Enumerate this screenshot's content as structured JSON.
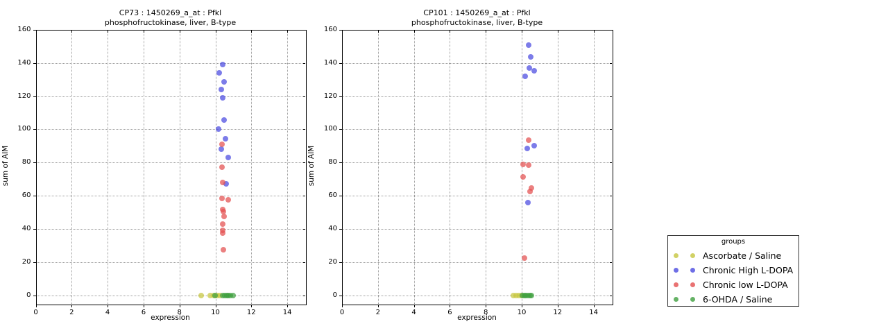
{
  "figure": {
    "background": "#ffffff",
    "text_color": "#000000",
    "grid_color": "#9a9a9a"
  },
  "legend": {
    "title": "groups",
    "items": [
      {
        "label": "Ascorbate / Saline",
        "color": "#c6c63e"
      },
      {
        "label": "Chronic High L-DOPA",
        "color": "#4a4ae0"
      },
      {
        "label": "Chronic low L-DOPA",
        "color": "#e34f4f"
      },
      {
        "label": "6-OHDA / Saline",
        "color": "#3f9f3f"
      }
    ]
  },
  "chart_data": [
    {
      "type": "scatter",
      "title_line1": "CP73 : 1450269_a_at : Pfkl",
      "title_line2": "phosphofructokinase, liver, B-type",
      "xlabel": "expression",
      "ylabel": "sum of AIM",
      "xlim": [
        0,
        15
      ],
      "ylim": [
        -5,
        160
      ],
      "xticks": [
        0,
        2,
        4,
        6,
        8,
        10,
        12,
        14
      ],
      "yticks": [
        0,
        20,
        40,
        60,
        80,
        100,
        120,
        140,
        160
      ],
      "grid": true,
      "series": [
        {
          "name": "Ascorbate / Saline",
          "color": "#c6c63e",
          "points": [
            [
              9.2,
              0
            ],
            [
              9.7,
              0
            ],
            [
              9.9,
              0
            ],
            [
              10.1,
              0
            ],
            [
              10.25,
              0
            ]
          ]
        },
        {
          "name": "Chronic High L-DOPA",
          "color": "#4a4ae0",
          "points": [
            [
              10.4,
              139
            ],
            [
              10.22,
              134
            ],
            [
              10.47,
              128.5
            ],
            [
              10.31,
              124
            ],
            [
              10.4,
              119
            ],
            [
              10.47,
              105.5
            ],
            [
              10.18,
              100
            ],
            [
              10.55,
              94.5
            ],
            [
              10.34,
              88
            ],
            [
              10.73,
              83
            ],
            [
              10.61,
              67
            ]
          ]
        },
        {
          "name": "Chronic low L-DOPA",
          "color": "#e34f4f",
          "points": [
            [
              10.37,
              91
            ],
            [
              10.37,
              77
            ],
            [
              10.4,
              68
            ],
            [
              10.38,
              58.5
            ],
            [
              10.73,
              57.5
            ],
            [
              10.41,
              51.5
            ],
            [
              10.45,
              50.5
            ],
            [
              10.47,
              47.5
            ],
            [
              10.4,
              43
            ],
            [
              10.4,
              39
            ],
            [
              10.42,
              37.5
            ],
            [
              10.43,
              27.5
            ]
          ]
        },
        {
          "name": "6-OHDA / Saline",
          "color": "#3f9f3f",
          "points": [
            [
              9.98,
              0
            ],
            [
              10.42,
              0
            ],
            [
              10.52,
              0
            ],
            [
              10.62,
              0
            ],
            [
              10.72,
              0
            ],
            [
              10.82,
              0
            ],
            [
              10.97,
              0
            ]
          ]
        }
      ]
    },
    {
      "type": "scatter",
      "title_line1": "CP101 : 1450269_a_at : Pfkl",
      "title_line2": "phosphofructokinase, liver, B-type",
      "xlabel": "expression",
      "ylabel": "sum of AIM",
      "xlim": [
        0,
        15
      ],
      "ylim": [
        -5,
        160
      ],
      "xticks": [
        0,
        2,
        4,
        6,
        8,
        10,
        12,
        14
      ],
      "yticks": [
        0,
        20,
        40,
        60,
        80,
        100,
        120,
        140,
        160
      ],
      "grid": true,
      "series": [
        {
          "name": "Ascorbate / Saline",
          "color": "#c6c63e",
          "points": [
            [
              9.55,
              0
            ],
            [
              9.7,
              0
            ],
            [
              9.85,
              0
            ],
            [
              10.0,
              0
            ]
          ]
        },
        {
          "name": "Chronic High L-DOPA",
          "color": "#4a4ae0",
          "points": [
            [
              10.4,
              151
            ],
            [
              10.51,
              143.5
            ],
            [
              10.44,
              137
            ],
            [
              10.71,
              135.5
            ],
            [
              10.19,
              132
            ],
            [
              10.68,
              90
            ],
            [
              10.31,
              88.5
            ],
            [
              10.33,
              56
            ]
          ]
        },
        {
          "name": "Chronic low L-DOPA",
          "color": "#e34f4f",
          "points": [
            [
              10.4,
              93.5
            ],
            [
              10.09,
              79
            ],
            [
              10.38,
              78.5
            ],
            [
              10.08,
              71.5
            ],
            [
              10.54,
              64.5
            ],
            [
              10.47,
              62.5
            ],
            [
              10.16,
              22.5
            ]
          ]
        },
        {
          "name": "6-OHDA / Saline",
          "color": "#3f9f3f",
          "points": [
            [
              10.05,
              0
            ],
            [
              10.15,
              0
            ],
            [
              10.25,
              0
            ],
            [
              10.35,
              0
            ],
            [
              10.45,
              0
            ],
            [
              10.55,
              0
            ]
          ]
        }
      ]
    }
  ]
}
